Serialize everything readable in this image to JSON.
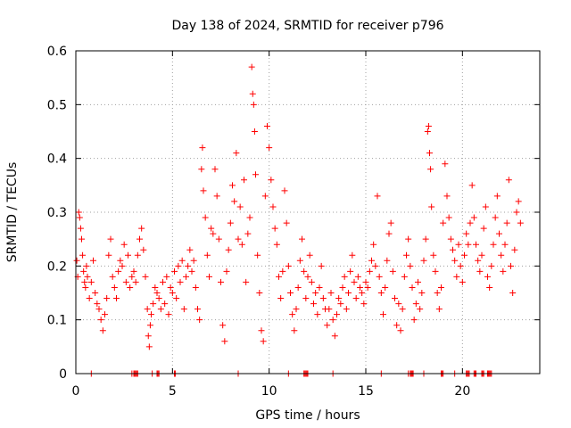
{
  "chart_data": {
    "type": "scatter",
    "title": "Day 138 of 2024, SRMTID for receiver p796",
    "xlabel": "GPS time / hours",
    "ylabel": "SRMTID / TECUs",
    "xlim": [
      0,
      24
    ],
    "ylim": [
      0,
      0.6
    ],
    "xticks": [
      0,
      5,
      10,
      15,
      20
    ],
    "xtick_labels": [
      "0",
      "5",
      "10",
      "15",
      "20"
    ],
    "yticks": [
      0,
      0.1,
      0.2,
      0.3,
      0.4,
      0.5,
      0.6
    ],
    "ytick_labels": [
      "0",
      "0.1",
      "0.2",
      "0.3",
      "0.4",
      "0.5",
      "0.6"
    ],
    "grid": true,
    "marker": "+",
    "color": "#ff0000",
    "series": [
      {
        "name": "SRMTID",
        "points": [
          [
            0.05,
            0.21
          ],
          [
            0.1,
            0.18
          ],
          [
            0.15,
            0.3
          ],
          [
            0.2,
            0.29
          ],
          [
            0.25,
            0.27
          ],
          [
            0.3,
            0.25
          ],
          [
            0.35,
            0.22
          ],
          [
            0.4,
            0.19
          ],
          [
            0.45,
            0.17
          ],
          [
            0.5,
            0.16
          ],
          [
            0.55,
            0.2
          ],
          [
            0.6,
            0.18
          ],
          [
            0.7,
            0.14
          ],
          [
            0.8,
            0.17
          ],
          [
            0.9,
            0.21
          ],
          [
            1.0,
            0.15
          ],
          [
            1.1,
            0.13
          ],
          [
            1.2,
            0.12
          ],
          [
            1.3,
            0.1
          ],
          [
            1.4,
            0.08
          ],
          [
            1.5,
            0.11
          ],
          [
            1.6,
            0.14
          ],
          [
            1.7,
            0.22
          ],
          [
            1.8,
            0.25
          ],
          [
            1.9,
            0.18
          ],
          [
            2.0,
            0.16
          ],
          [
            2.1,
            0.14
          ],
          [
            2.2,
            0.19
          ],
          [
            2.3,
            0.21
          ],
          [
            2.4,
            0.2
          ],
          [
            2.5,
            0.24
          ],
          [
            2.6,
            0.17
          ],
          [
            2.7,
            0.22
          ],
          [
            2.8,
            0.16
          ],
          [
            2.9,
            0.18
          ],
          [
            3.0,
            0.19
          ],
          [
            3.1,
            0.17
          ],
          [
            3.2,
            0.22
          ],
          [
            3.3,
            0.25
          ],
          [
            3.4,
            0.27
          ],
          [
            3.5,
            0.23
          ],
          [
            3.6,
            0.18
          ],
          [
            3.7,
            0.12
          ],
          [
            3.75,
            0.07
          ],
          [
            3.8,
            0.05
          ],
          [
            3.85,
            0.09
          ],
          [
            3.9,
            0.11
          ],
          [
            4.0,
            0.13
          ],
          [
            4.1,
            0.16
          ],
          [
            4.2,
            0.15
          ],
          [
            4.3,
            0.14
          ],
          [
            4.4,
            0.12
          ],
          [
            4.5,
            0.17
          ],
          [
            4.6,
            0.13
          ],
          [
            4.7,
            0.18
          ],
          [
            4.8,
            0.11
          ],
          [
            4.9,
            0.16
          ],
          [
            5.0,
            0.15
          ],
          [
            5.1,
            0.19
          ],
          [
            5.2,
            0.14
          ],
          [
            5.3,
            0.2
          ],
          [
            5.4,
            0.17
          ],
          [
            5.5,
            0.21
          ],
          [
            5.6,
            0.12
          ],
          [
            5.7,
            0.18
          ],
          [
            5.8,
            0.2
          ],
          [
            5.9,
            0.23
          ],
          [
            6.0,
            0.19
          ],
          [
            6.1,
            0.21
          ],
          [
            6.2,
            0.16
          ],
          [
            6.3,
            0.12
          ],
          [
            6.4,
            0.1
          ],
          [
            6.5,
            0.38
          ],
          [
            6.55,
            0.42
          ],
          [
            6.6,
            0.34
          ],
          [
            6.7,
            0.29
          ],
          [
            6.8,
            0.22
          ],
          [
            6.9,
            0.18
          ],
          [
            7.0,
            0.27
          ],
          [
            7.1,
            0.26
          ],
          [
            7.2,
            0.38
          ],
          [
            7.3,
            0.33
          ],
          [
            7.4,
            0.25
          ],
          [
            7.5,
            0.17
          ],
          [
            7.6,
            0.09
          ],
          [
            7.7,
            0.06
          ],
          [
            7.8,
            0.19
          ],
          [
            7.9,
            0.23
          ],
          [
            8.0,
            0.28
          ],
          [
            8.1,
            0.35
          ],
          [
            8.2,
            0.32
          ],
          [
            8.3,
            0.41
          ],
          [
            8.4,
            0.25
          ],
          [
            8.5,
            0.31
          ],
          [
            8.6,
            0.24
          ],
          [
            8.7,
            0.36
          ],
          [
            8.8,
            0.17
          ],
          [
            8.9,
            0.26
          ],
          [
            9.0,
            0.29
          ],
          [
            9.1,
            0.57
          ],
          [
            9.15,
            0.52
          ],
          [
            9.2,
            0.5
          ],
          [
            9.25,
            0.45
          ],
          [
            9.3,
            0.37
          ],
          [
            9.4,
            0.22
          ],
          [
            9.5,
            0.15
          ],
          [
            9.6,
            0.08
          ],
          [
            9.7,
            0.06
          ],
          [
            9.8,
            0.33
          ],
          [
            9.9,
            0.46
          ],
          [
            10.0,
            0.42
          ],
          [
            10.1,
            0.36
          ],
          [
            10.2,
            0.31
          ],
          [
            10.3,
            0.27
          ],
          [
            10.4,
            0.24
          ],
          [
            10.5,
            0.18
          ],
          [
            10.6,
            0.14
          ],
          [
            10.7,
            0.19
          ],
          [
            10.8,
            0.34
          ],
          [
            10.9,
            0.28
          ],
          [
            11.0,
            0.2
          ],
          [
            11.1,
            0.15
          ],
          [
            11.2,
            0.11
          ],
          [
            11.3,
            0.08
          ],
          [
            11.4,
            0.12
          ],
          [
            11.5,
            0.16
          ],
          [
            11.6,
            0.21
          ],
          [
            11.7,
            0.25
          ],
          [
            11.8,
            0.19
          ],
          [
            11.9,
            0.14
          ],
          [
            12.0,
            0.18
          ],
          [
            12.1,
            0.22
          ],
          [
            12.2,
            0.17
          ],
          [
            12.3,
            0.13
          ],
          [
            12.4,
            0.15
          ],
          [
            12.5,
            0.11
          ],
          [
            12.6,
            0.16
          ],
          [
            12.7,
            0.2
          ],
          [
            12.8,
            0.14
          ],
          [
            12.9,
            0.12
          ],
          [
            13.0,
            0.09
          ],
          [
            13.1,
            0.12
          ],
          [
            13.2,
            0.15
          ],
          [
            13.3,
            0.1
          ],
          [
            13.4,
            0.07
          ],
          [
            13.5,
            0.11
          ],
          [
            13.6,
            0.14
          ],
          [
            13.7,
            0.13
          ],
          [
            13.8,
            0.16
          ],
          [
            13.9,
            0.18
          ],
          [
            14.0,
            0.12
          ],
          [
            14.1,
            0.15
          ],
          [
            14.2,
            0.19
          ],
          [
            14.3,
            0.22
          ],
          [
            14.4,
            0.17
          ],
          [
            14.5,
            0.14
          ],
          [
            14.6,
            0.18
          ],
          [
            14.7,
            0.16
          ],
          [
            14.8,
            0.15
          ],
          [
            14.9,
            0.13
          ],
          [
            15.0,
            0.17
          ],
          [
            15.1,
            0.16
          ],
          [
            15.2,
            0.19
          ],
          [
            15.3,
            0.21
          ],
          [
            15.4,
            0.24
          ],
          [
            15.5,
            0.2
          ],
          [
            15.6,
            0.33
          ],
          [
            15.7,
            0.18
          ],
          [
            15.8,
            0.15
          ],
          [
            15.9,
            0.11
          ],
          [
            16.0,
            0.16
          ],
          [
            16.1,
            0.21
          ],
          [
            16.2,
            0.26
          ],
          [
            16.3,
            0.28
          ],
          [
            16.4,
            0.19
          ],
          [
            16.5,
            0.14
          ],
          [
            16.6,
            0.09
          ],
          [
            16.7,
            0.13
          ],
          [
            16.8,
            0.08
          ],
          [
            16.9,
            0.12
          ],
          [
            17.0,
            0.18
          ],
          [
            17.1,
            0.22
          ],
          [
            17.2,
            0.25
          ],
          [
            17.3,
            0.2
          ],
          [
            17.4,
            0.16
          ],
          [
            17.5,
            0.1
          ],
          [
            17.6,
            0.13
          ],
          [
            17.7,
            0.17
          ],
          [
            17.8,
            0.12
          ],
          [
            17.9,
            0.15
          ],
          [
            18.0,
            0.21
          ],
          [
            18.1,
            0.25
          ],
          [
            18.2,
            0.45
          ],
          [
            18.25,
            0.46
          ],
          [
            18.3,
            0.41
          ],
          [
            18.35,
            0.38
          ],
          [
            18.4,
            0.31
          ],
          [
            18.5,
            0.22
          ],
          [
            18.6,
            0.19
          ],
          [
            18.7,
            0.15
          ],
          [
            18.8,
            0.12
          ],
          [
            18.9,
            0.16
          ],
          [
            19.0,
            0.28
          ],
          [
            19.1,
            0.39
          ],
          [
            19.2,
            0.33
          ],
          [
            19.3,
            0.29
          ],
          [
            19.4,
            0.25
          ],
          [
            19.5,
            0.23
          ],
          [
            19.6,
            0.21
          ],
          [
            19.7,
            0.18
          ],
          [
            19.8,
            0.24
          ],
          [
            19.9,
            0.2
          ],
          [
            20.0,
            0.17
          ],
          [
            20.1,
            0.22
          ],
          [
            20.2,
            0.26
          ],
          [
            20.3,
            0.24
          ],
          [
            20.4,
            0.28
          ],
          [
            20.5,
            0.35
          ],
          [
            20.6,
            0.29
          ],
          [
            20.7,
            0.24
          ],
          [
            20.8,
            0.21
          ],
          [
            20.9,
            0.19
          ],
          [
            21.0,
            0.22
          ],
          [
            21.1,
            0.27
          ],
          [
            21.2,
            0.31
          ],
          [
            21.3,
            0.18
          ],
          [
            21.4,
            0.16
          ],
          [
            21.5,
            0.2
          ],
          [
            21.6,
            0.24
          ],
          [
            21.7,
            0.29
          ],
          [
            21.8,
            0.33
          ],
          [
            21.9,
            0.26
          ],
          [
            22.0,
            0.22
          ],
          [
            22.1,
            0.19
          ],
          [
            22.2,
            0.24
          ],
          [
            22.3,
            0.28
          ],
          [
            22.4,
            0.36
          ],
          [
            22.5,
            0.2
          ],
          [
            22.6,
            0.15
          ],
          [
            22.7,
            0.23
          ],
          [
            22.8,
            0.3
          ],
          [
            22.9,
            0.32
          ],
          [
            23.0,
            0.28
          ],
          [
            0.8,
            0
          ],
          [
            2.9,
            0
          ],
          [
            3.0,
            0
          ],
          [
            3.05,
            0
          ],
          [
            3.1,
            0
          ],
          [
            3.15,
            0
          ],
          [
            3.2,
            0
          ],
          [
            3.95,
            0
          ],
          [
            4.2,
            0
          ],
          [
            4.25,
            0
          ],
          [
            4.3,
            0
          ],
          [
            5.1,
            0
          ],
          [
            5.15,
            0
          ],
          [
            8.4,
            0
          ],
          [
            11.0,
            0
          ],
          [
            11.8,
            0
          ],
          [
            11.85,
            0
          ],
          [
            11.9,
            0
          ],
          [
            11.95,
            0
          ],
          [
            12.0,
            0
          ],
          [
            13.3,
            0
          ],
          [
            15.8,
            0
          ],
          [
            17.2,
            0
          ],
          [
            17.3,
            0
          ],
          [
            17.35,
            0
          ],
          [
            17.4,
            0
          ],
          [
            17.45,
            0
          ],
          [
            18.0,
            0
          ],
          [
            18.9,
            0
          ],
          [
            18.95,
            0
          ],
          [
            19.0,
            0
          ],
          [
            19.6,
            0
          ],
          [
            20.2,
            0
          ],
          [
            20.25,
            0
          ],
          [
            20.3,
            0
          ],
          [
            20.35,
            0
          ],
          [
            20.6,
            0
          ],
          [
            20.65,
            0
          ],
          [
            20.7,
            0
          ],
          [
            21.0,
            0
          ],
          [
            21.05,
            0
          ],
          [
            21.1,
            0
          ],
          [
            21.3,
            0
          ],
          [
            21.35,
            0
          ],
          [
            21.4,
            0
          ],
          [
            21.45,
            0
          ],
          [
            21.5,
            0
          ]
        ]
      }
    ]
  }
}
